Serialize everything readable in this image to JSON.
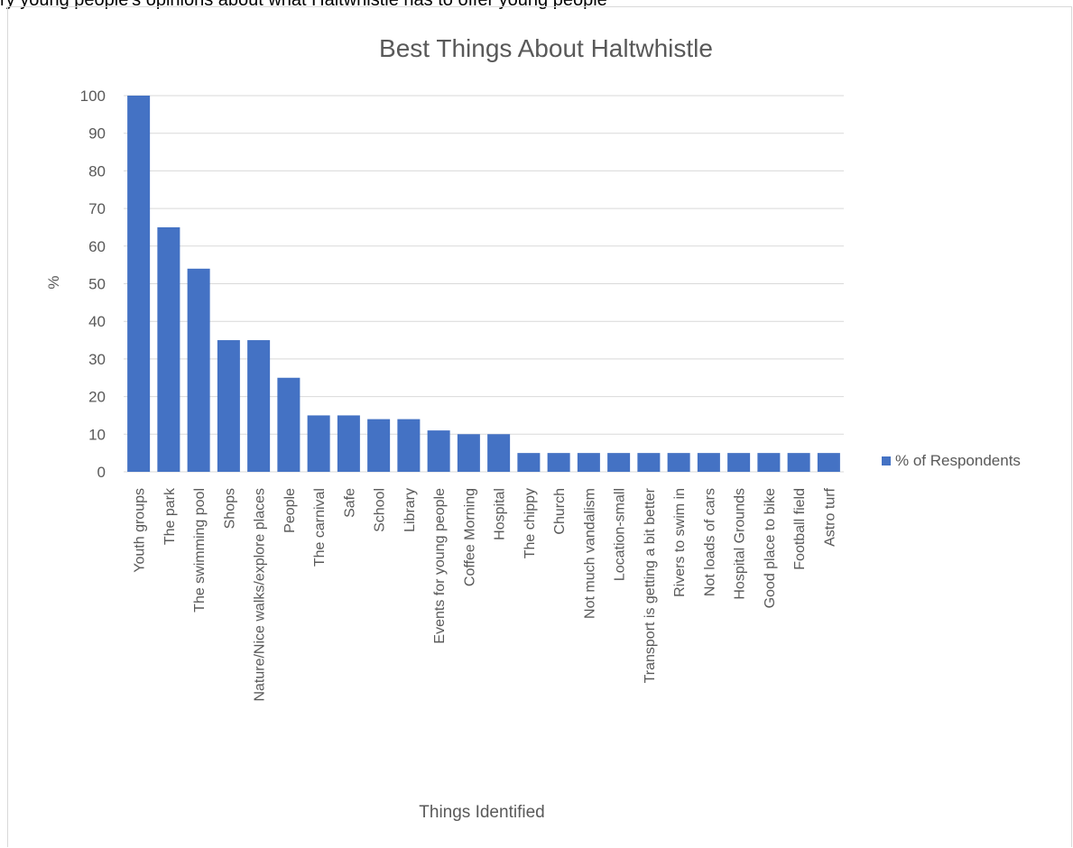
{
  "page": {
    "top_text": "ry young people's opinions about what Haltwhistle has to offer young people"
  },
  "colors": {
    "bar": "#4472c4",
    "grid": "#d9d9d9",
    "text": "#595959",
    "frame": "#d9d9d9"
  },
  "chart_data": {
    "type": "bar",
    "title": "Best Things About Haltwhistle",
    "xlabel": "Things Identified",
    "ylabel": "%",
    "ylim": [
      0,
      100
    ],
    "yticks": [
      0,
      10,
      20,
      30,
      40,
      50,
      60,
      70,
      80,
      90,
      100
    ],
    "grid": true,
    "legend_position": "right",
    "categories": [
      "Youth groups",
      "The park",
      "The swimming pool",
      "Shops",
      "Nature/Nice walks/explore places",
      "People",
      "The carnival",
      "Safe",
      "School",
      "Library",
      "Events for young people",
      "Coffee Morning",
      "Hospital",
      "The chippy",
      "Church",
      "Not much vandalism",
      "Location-small",
      "Transport is getting a bit better",
      "Rivers to swim in",
      "Not loads of cars",
      "Hospital Grounds",
      "Good place to bike",
      "Football field",
      "Astro turf"
    ],
    "series": [
      {
        "name": "% of Respondents",
        "values": [
          100,
          65,
          54,
          35,
          35,
          25,
          15,
          15,
          14,
          14,
          11,
          10,
          10,
          5,
          5,
          5,
          5,
          5,
          5,
          5,
          5,
          5,
          5,
          5
        ]
      }
    ]
  }
}
